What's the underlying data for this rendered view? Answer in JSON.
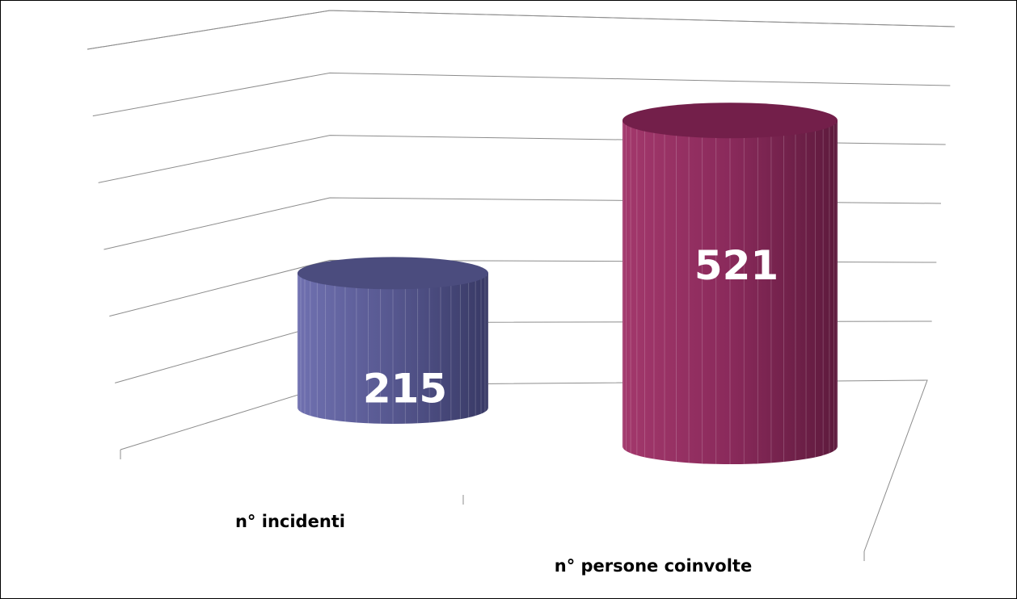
{
  "chart_data": {
    "type": "bar",
    "style": "3d-cylinder",
    "categories": [
      "n° incidenti",
      "n° persone coinvolte"
    ],
    "values": [
      215,
      521
    ],
    "data_labels": [
      "215",
      "521"
    ],
    "colors": [
      "#5a5b96",
      "#8e2b5e"
    ],
    "ylim": [
      0,
      600
    ],
    "grid": true,
    "legend": "none",
    "title": "",
    "xlabel": "",
    "ylabel": ""
  }
}
